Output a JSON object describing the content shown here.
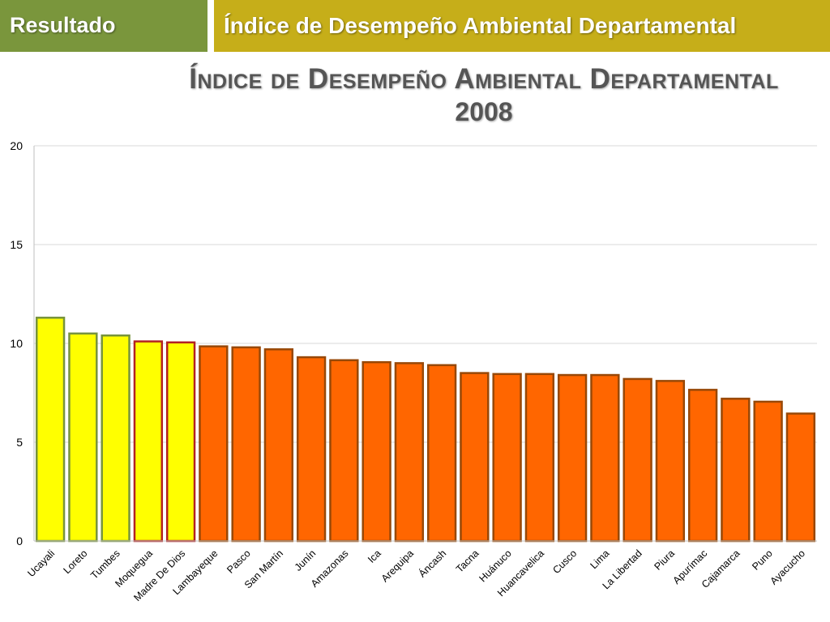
{
  "header": {
    "section_label": "Resultado",
    "topic_label": "Índice de Desempeño Ambiental Departamental"
  },
  "colors": {
    "section_bg": "#7a963c",
    "topic_bg": "#c6ae19",
    "top_fill": "#ffff00",
    "rest_fill": "#ff6600"
  },
  "chart_data": {
    "type": "bar",
    "title": "Índice de Desempeño Ambiental Departamental",
    "subtitle": "2008",
    "xlabel": "",
    "ylabel": "",
    "ylim": [
      0,
      20
    ],
    "yticks": [
      0,
      5,
      10,
      15,
      20
    ],
    "grid": true,
    "categories": [
      "Ucayali",
      "Loreto",
      "Tumbes",
      "Moquegua",
      "Madre De Dios",
      "Lambayeque",
      "Pasco",
      "San Martín",
      "Junín",
      "Amazonas",
      "Ica",
      "Arequipa",
      "Áncash",
      "Tacna",
      "Huánuco",
      "Huancavelica",
      "Cusco",
      "Lima",
      "La Libertad",
      "Piura",
      "Apurímac",
      "Cajamarca",
      "Puno",
      "Ayacucho"
    ],
    "values": [
      11.3,
      10.5,
      10.4,
      10.1,
      10.05,
      9.85,
      9.8,
      9.7,
      9.3,
      9.15,
      9.05,
      9.0,
      8.9,
      8.5,
      8.45,
      8.45,
      8.4,
      8.4,
      8.2,
      8.1,
      7.65,
      7.2,
      7.05,
      6.45
    ],
    "fills": [
      "yellow",
      "yellow",
      "yellow",
      "yellow",
      "yellow",
      "orange",
      "orange",
      "orange",
      "orange",
      "orange",
      "orange",
      "orange",
      "orange",
      "orange",
      "orange",
      "orange",
      "orange",
      "orange",
      "orange",
      "orange",
      "orange",
      "orange",
      "orange",
      "orange"
    ],
    "outlines": [
      "green",
      "green",
      "green",
      "red",
      "red",
      "brown",
      "brown",
      "brown",
      "brown",
      "brown",
      "brown",
      "brown",
      "brown",
      "brown",
      "brown",
      "brown",
      "brown",
      "brown",
      "brown",
      "brown",
      "brown",
      "brown",
      "brown",
      "brown"
    ]
  }
}
